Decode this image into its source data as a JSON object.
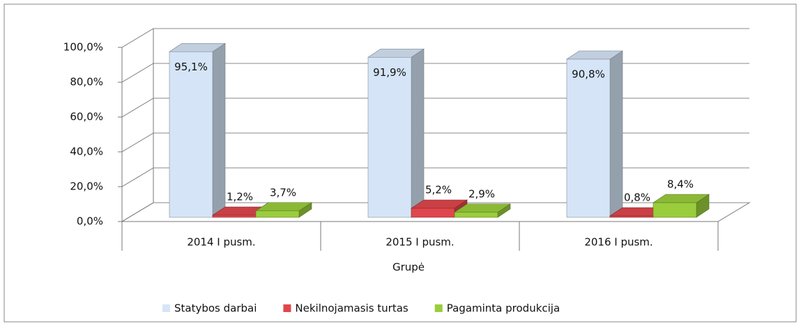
{
  "chart_data": {
    "type": "bar3d",
    "x_label": "Grupė",
    "categories": [
      "2014 I pusm.",
      "2015 I pusm.",
      "2016 I pusm."
    ],
    "series": [
      {
        "name": "Statybos darbai",
        "color": "#d5e5f7",
        "values": [
          95.1,
          91.9,
          90.8
        ],
        "value_labels": [
          "95,1%",
          "91,9%",
          "90,8%"
        ]
      },
      {
        "name": "Nekilnojamasis turtas",
        "color": "#e0474c",
        "values": [
          1.2,
          5.2,
          0.8
        ],
        "value_labels": [
          "1,2%",
          "5,2%",
          "0,8%"
        ]
      },
      {
        "name": "Pagaminta produkcija",
        "color": "#9acd3c",
        "values": [
          3.7,
          2.9,
          8.4
        ],
        "value_labels": [
          "3,7%",
          "2,9%",
          "8,4%"
        ]
      }
    ],
    "ylim": [
      0,
      100
    ],
    "yticks": [
      {
        "value": 0,
        "label": "0,0%"
      },
      {
        "value": 20,
        "label": "20,0%"
      },
      {
        "value": 40,
        "label": "40,0%"
      },
      {
        "value": 60,
        "label": "60,0%"
      },
      {
        "value": 80,
        "label": "80,0%"
      },
      {
        "value": 100,
        "label": "100,0%"
      }
    ],
    "grid": true,
    "legend": "bottom"
  }
}
